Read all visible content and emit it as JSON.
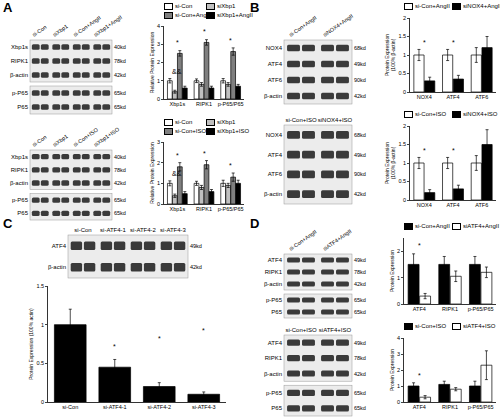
{
  "panel_labels": [
    "A",
    "B",
    "C",
    "D"
  ],
  "blots": [
    {
      "lanes": [
        "si-Con",
        "siXbp1",
        "si-Con+AngII",
        "siXbp1+AngII"
      ],
      "groups": [
        [
          {
            "label": "Xbp1s",
            "kd": "40kd"
          },
          {
            "label": "RIPK1",
            "kd": "78kd"
          },
          {
            "label": "β-actin",
            "kd": "42kd"
          }
        ],
        [
          {
            "label": "p-P65",
            "kd": "65kd"
          },
          {
            "label": "P65",
            "kd": "65kd"
          }
        ]
      ]
    },
    {
      "lanes": [
        "si-Con",
        "siXbp1",
        "si-Con+ISO",
        "siXbp1+ISO"
      ],
      "groups": [
        [
          {
            "label": "Xbp1s",
            "kd": "40kd"
          },
          {
            "label": "RIPK1",
            "kd": "78kd"
          },
          {
            "label": "β-actin",
            "kd": "42kd"
          }
        ],
        [
          {
            "label": "p-P65",
            "kd": "65kd"
          },
          {
            "label": "P65",
            "kd": "65kd"
          }
        ]
      ]
    },
    {
      "lanes": [
        "si-Con+AngII",
        "siNOX4+AngII"
      ],
      "groups": [
        [
          {
            "label": "NOX4",
            "kd": "68kd"
          },
          {
            "label": "ATF4",
            "kd": "49kd"
          },
          {
            "label": "ATF6",
            "kd": "90kd"
          },
          {
            "label": "β-actin",
            "kd": "42kd"
          }
        ]
      ]
    },
    {
      "lanes": [
        "si-Con+ISO",
        "siNOX4+ISO"
      ],
      "groups": [
        [
          {
            "label": "NOX4",
            "kd": "68kd"
          },
          {
            "label": "ATF4",
            "kd": "49kd"
          },
          {
            "label": "ATF6",
            "kd": "90kd"
          },
          {
            "label": "β-actin",
            "kd": "42kd"
          }
        ]
      ]
    },
    {
      "lanes": [
        "si-Con",
        "si-ATF4-1",
        "si-ATF4-2",
        "si-ATF4-3"
      ],
      "groups": [
        [
          {
            "label": "ATF4",
            "kd": "49kd"
          },
          {
            "label": "β-actin",
            "kd": "42kd"
          }
        ]
      ]
    },
    {
      "lanes": [
        "si-Con+AngII",
        "siATF4+AngII"
      ],
      "groups": [
        [
          {
            "label": "ATF4",
            "kd": "49kd"
          },
          {
            "label": "RIPK1",
            "kd": "78kd"
          },
          {
            "label": "β-actin",
            "kd": "42kd"
          }
        ],
        [
          {
            "label": "p-P65",
            "kd": "65kd"
          },
          {
            "label": "P65",
            "kd": "65kd"
          }
        ]
      ]
    },
    {
      "lanes": [
        "si-Con+ISO",
        "siATF4+ISO"
      ],
      "groups": [
        [
          {
            "label": "ATF4",
            "kd": "49kd"
          },
          {
            "label": "RIPK1",
            "kd": "78kd"
          },
          {
            "label": "β-actin",
            "kd": "42kd"
          }
        ],
        [
          {
            "label": "p-P65",
            "kd": "65kd"
          },
          {
            "label": "P65",
            "kd": "65kd"
          }
        ]
      ]
    }
  ],
  "chart_data": [
    {
      "type": "bar",
      "y_label": "Relative Protein Expression",
      "grid": false,
      "categories": [
        "Xbp1s",
        "RIPK1",
        "p-P65/P65"
      ],
      "ylim": [
        0,
        4
      ],
      "yticks": [
        0,
        1,
        2,
        3,
        4
      ],
      "series": [
        {
          "name": "si-Con",
          "color": "#ffffff",
          "values": [
            1.0,
            1.0,
            1.0
          ],
          "errors": [
            0.12,
            0.1,
            0.12
          ]
        },
        {
          "name": "siXbp1",
          "color": "#c0c0c0",
          "values": [
            0.4,
            0.8,
            0.8
          ],
          "errors": [
            0.08,
            0.1,
            0.1
          ]
        },
        {
          "name": "si-Con+AngII",
          "color": "#7f7f7f",
          "values": [
            2.5,
            3.1,
            2.6
          ],
          "errors": [
            0.15,
            0.15,
            0.2
          ]
        },
        {
          "name": "siXbp1+AngII",
          "color": "#000000",
          "values": [
            0.6,
            0.6,
            0.7
          ],
          "errors": [
            0.1,
            0.1,
            0.1
          ]
        }
      ],
      "annotations": [
        {
          "text": "&&",
          "x": 0,
          "y": 1.2
        },
        {
          "text": "*",
          "x": 0,
          "y": 2.8
        },
        {
          "text": "*",
          "x": 1,
          "y": 3.4
        },
        {
          "text": "*",
          "x": 2,
          "y": 2.9
        }
      ]
    },
    {
      "type": "bar",
      "y_label": "Relative Protein Expression",
      "grid": false,
      "categories": [
        "Xbp1s",
        "RIPK1",
        "p-P65/P65"
      ],
      "ylim": [
        0,
        3
      ],
      "yticks": [
        0,
        1,
        2,
        3
      ],
      "series": [
        {
          "name": "si-Con",
          "color": "#ffffff",
          "values": [
            1.0,
            1.0,
            1.0
          ],
          "errors": [
            0.12,
            0.1,
            0.15
          ]
        },
        {
          "name": "siXbp1",
          "color": "#c0c0c0",
          "values": [
            0.4,
            0.8,
            0.9
          ],
          "errors": [
            0.08,
            0.1,
            0.1
          ]
        },
        {
          "name": "si-Con+ISO",
          "color": "#7f7f7f",
          "values": [
            1.8,
            1.9,
            1.3
          ],
          "errors": [
            0.2,
            0.2,
            0.2
          ]
        },
        {
          "name": "siXbp1+ISO",
          "color": "#000000",
          "values": [
            0.5,
            0.6,
            1.0
          ],
          "errors": [
            0.1,
            0.1,
            0.15
          ]
        }
      ],
      "annotations": [
        {
          "text": "&&",
          "x": 0,
          "y": 1.2
        },
        {
          "text": "*",
          "x": 0,
          "y": 2.1
        },
        {
          "text": "*",
          "x": 1,
          "y": 2.2
        },
        {
          "text": "*",
          "x": 2,
          "y": 1.6
        }
      ]
    },
    {
      "type": "bar",
      "y_label": [
        "Protein Expression",
        "(100% β-actin)"
      ],
      "grid": false,
      "categories": [
        "NOX4",
        "ATF4",
        "ATF6"
      ],
      "ylim": [
        0,
        2
      ],
      "yticks": [
        0,
        0.5,
        1,
        1.5,
        2
      ],
      "series": [
        {
          "name": "si-Con+AngII",
          "color": "#ffffff",
          "values": [
            1.0,
            1.0,
            1.0
          ],
          "errors": [
            0.15,
            0.15,
            0.2
          ]
        },
        {
          "name": "siNOX4+AngII",
          "color": "#000000",
          "values": [
            0.3,
            0.35,
            1.2
          ],
          "errors": [
            0.1,
            0.1,
            0.3
          ]
        }
      ],
      "annotations": [
        {
          "text": "*",
          "x": 0,
          "y": 1.2
        },
        {
          "text": "*",
          "x": 1,
          "y": 1.2
        }
      ]
    },
    {
      "type": "bar",
      "y_label": [
        "Protein Expression",
        "(100% β-actin)"
      ],
      "grid": false,
      "categories": [
        "NOX4",
        "ATF4",
        "ATF6"
      ],
      "ylim": [
        0,
        2
      ],
      "yticks": [
        0,
        0.5,
        1,
        1.5,
        2
      ],
      "series": [
        {
          "name": "si-Con+ISO",
          "color": "#ffffff",
          "values": [
            1.0,
            1.0,
            1.0
          ],
          "errors": [
            0.15,
            0.15,
            0.2
          ]
        },
        {
          "name": "siNOX4+ISO",
          "color": "#000000",
          "values": [
            0.2,
            0.3,
            1.5
          ],
          "errors": [
            0.08,
            0.1,
            0.4
          ]
        }
      ],
      "annotations": [
        {
          "text": "*",
          "x": 0,
          "y": 1.2
        },
        {
          "text": "*",
          "x": 1,
          "y": 1.2
        }
      ]
    },
    {
      "type": "bar",
      "y_label": "Protein Expression (100% actin)",
      "grid": false,
      "categories": [
        "si-Con",
        "si-ATF4-1",
        "si-ATF4-2",
        "si-ATF4-3"
      ],
      "ylim": [
        0,
        1.5
      ],
      "yticks": [
        0,
        0.5,
        1,
        1.5
      ],
      "color": "#000000",
      "values": [
        1.0,
        0.45,
        0.2,
        0.1
      ],
      "errors": [
        0.2,
        0.1,
        0.05,
        0.03
      ],
      "annotations": [
        {
          "text": "*",
          "x": 1,
          "y": 0.65
        },
        {
          "text": "*",
          "x": 2,
          "y": 0.75
        },
        {
          "text": "*",
          "x": 3,
          "y": 0.85
        }
      ]
    },
    {
      "type": "bar",
      "y_label": "Protein Expression",
      "grid": false,
      "categories": [
        "ATF4",
        "RIPK1",
        "p-P65/P65"
      ],
      "ylim": [
        0,
        2.5
      ],
      "yticks": [
        0,
        1,
        2
      ],
      "series": [
        {
          "name": "si-Con+AngII",
          "color": "#000000",
          "values": [
            1.5,
            1.5,
            1.5
          ],
          "errors": [
            0.4,
            0.3,
            0.3
          ]
        },
        {
          "name": "siATF4+AngII",
          "color": "#ffffff",
          "values": [
            0.3,
            1.05,
            1.2
          ],
          "errors": [
            0.1,
            0.2,
            0.2
          ]
        }
      ],
      "annotations": [
        {
          "text": "*",
          "x": 0,
          "y": 2.0
        }
      ]
    },
    {
      "type": "bar",
      "y_label": "Protein Expression",
      "grid": false,
      "categories": [
        "ATF4",
        "RIPK1",
        "p-P65/P65"
      ],
      "ylim": [
        0,
        4
      ],
      "yticks": [
        0,
        1,
        2,
        3,
        4
      ],
      "series": [
        {
          "name": "si-Con+ISO",
          "color": "#000000",
          "values": [
            1.0,
            1.1,
            1.0
          ],
          "errors": [
            0.2,
            0.2,
            0.3
          ]
        },
        {
          "name": "siATF4+ISO",
          "color": "#ffffff",
          "values": [
            0.3,
            0.8,
            2.3
          ],
          "errors": [
            0.1,
            0.1,
            0.9
          ]
        }
      ],
      "annotations": [
        {
          "text": "*",
          "x": 0,
          "y": 1.3
        }
      ]
    }
  ]
}
